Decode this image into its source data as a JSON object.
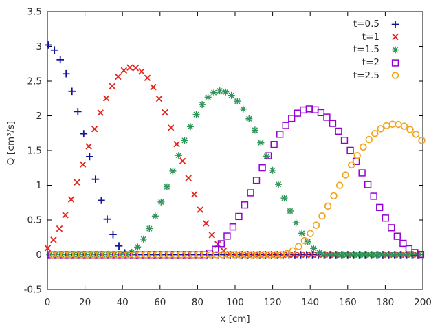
{
  "chart_data": {
    "type": "scatter",
    "title": "",
    "xlabel": "x [cm]",
    "ylabel": "Q [cm³/s]",
    "xlim": [
      0,
      200
    ],
    "ylim": [
      -0.5,
      3.5
    ],
    "xticks": [
      0,
      20,
      40,
      60,
      80,
      100,
      120,
      140,
      160,
      180,
      200
    ],
    "xtick_labels": [
      "0",
      "20",
      "40",
      "60",
      "80",
      "100",
      "120",
      "140",
      "160",
      "180",
      "200"
    ],
    "yticks": [
      -0.5,
      0,
      0.5,
      1,
      1.5,
      2,
      2.5,
      3,
      3.5
    ],
    "ytick_labels": [
      "-0.5",
      "0",
      "0.5",
      "1",
      "1.5",
      "2",
      "2.5",
      "3",
      "3.5"
    ],
    "grid": false,
    "legend_position": "top-right-inside",
    "tick_style": "inward-mirrored",
    "background_color": "#ffffff",
    "border_color": "#000000",
    "text_color": "#2e2e2e",
    "series": [
      {
        "name": "t=0.5",
        "marker": "plus",
        "color": "#13139b",
        "model": "raised-cosine-pulse",
        "peak_q": 3.03,
        "peak_x": -1,
        "width_left": 45,
        "width_right": 45,
        "x_start": 0.6,
        "dx": 3.125,
        "x_end": 200,
        "baseline_q": 0
      },
      {
        "name": "t=1",
        "marker": "cross",
        "color": "#e8251d",
        "model": "raised-cosine-pulse",
        "peak_q": 2.7,
        "peak_x": 45,
        "width_left": 51,
        "width_right": 54,
        "x_start": 0.15,
        "dx": 3.125,
        "x_end": 200,
        "baseline_q": 0
      },
      {
        "name": "t=1.5",
        "marker": "asterisk",
        "color": "#2e9658",
        "model": "raised-cosine-pulse",
        "peak_q": 2.36,
        "peak_x": 92,
        "width_left": 51,
        "width_right": 57,
        "x_start": 1.2,
        "dx": 3.125,
        "x_end": 200,
        "baseline_q": 0
      },
      {
        "name": "t=2",
        "marker": "square",
        "color": "#9400d3",
        "model": "raised-cosine-pulse",
        "peak_q": 2.1,
        "peak_x": 139.5,
        "width_left": 57,
        "width_right": 61,
        "x_start": 2.0,
        "dx": 3.125,
        "x_end": 200,
        "baseline_q": 0
      },
      {
        "name": "t=2.5",
        "marker": "circle",
        "color": "#f2a41f",
        "model": "raised-cosine-pulse",
        "peak_q": 1.88,
        "peak_x": 185,
        "width_left": 61,
        "width_right": 63,
        "x_start": 2.6,
        "dx": 3.125,
        "x_end": 200,
        "baseline_q": 0
      }
    ]
  }
}
